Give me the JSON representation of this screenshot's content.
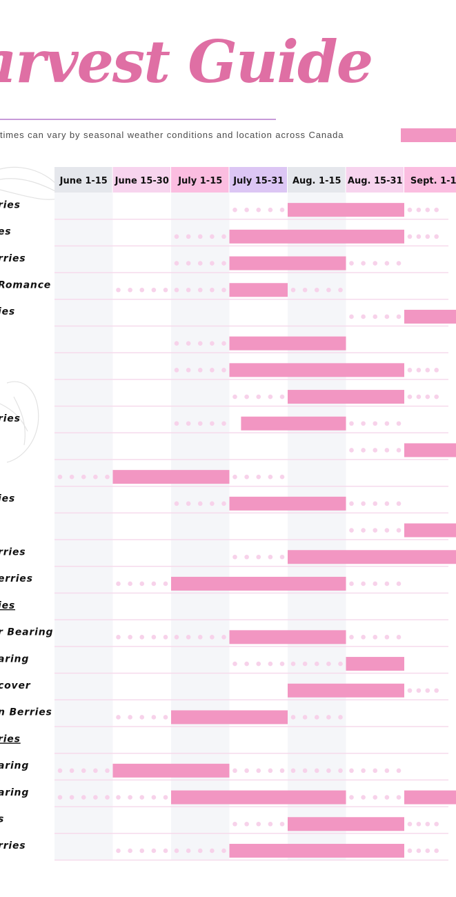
{
  "header": {
    "title": "arvest Guide",
    "subtitle": "times can vary by seasonal weather conditions and location across Canada"
  },
  "legend": {
    "color": "#f296c2"
  },
  "colors": {
    "bar": "#f296c2",
    "dots": "#f7d2ea",
    "row_line": "#f6daec",
    "column_shade": "#f5f6f9",
    "header_colors": [
      "#e5e7ec",
      "#f7d4ee",
      "#fbbde0",
      "#dcc6f4",
      "#e5e7ec",
      "#f7d4ee",
      "#fbbde0"
    ]
  },
  "chart_data": {
    "type": "gantt",
    "periods": [
      "June 1-15",
      "June 15-30",
      "July 1-15",
      "July 15-31",
      "Aug. 1-15",
      "Aug. 15-31",
      "Sept. 1-1"
    ],
    "rows": [
      {
        "label": "ries",
        "underline": false,
        "harvest": [
          4.0,
          6.0
        ],
        "dots_before": [
          3.0,
          4.0
        ],
        "dots_after": [
          6.0,
          6.8
        ]
      },
      {
        "label": "es",
        "underline": false,
        "harvest": [
          3.0,
          6.0
        ],
        "dots_before": [
          2.0,
          3.0
        ],
        "dots_after": [
          6.0,
          6.8
        ]
      },
      {
        "label": "rries",
        "underline": false,
        "harvest": [
          3.0,
          5.0
        ],
        "dots_before": [
          2.0,
          3.0
        ],
        "dots_after": [
          5.0,
          6.0
        ]
      },
      {
        "label": "Romance",
        "underline": false,
        "harvest": [
          3.0,
          4.0
        ],
        "dots_before": [
          1.0,
          3.0
        ],
        "dots_after": [
          4.0,
          5.0
        ]
      },
      {
        "label": "ies",
        "underline": false,
        "harvest": [
          6.0,
          7.0
        ],
        "dots_before": [
          5.0,
          6.0
        ],
        "dots_after": null
      },
      {
        "label": "",
        "underline": false,
        "harvest": [
          3.0,
          5.0
        ],
        "dots_before": [
          2.0,
          3.0
        ],
        "dots_after": null
      },
      {
        "label": "",
        "underline": false,
        "harvest": [
          3.0,
          6.0
        ],
        "dots_before": [
          2.0,
          3.0
        ],
        "dots_after": [
          6.0,
          6.8
        ]
      },
      {
        "label": "",
        "underline": false,
        "harvest": [
          4.0,
          6.0
        ],
        "dots_before": [
          3.0,
          4.0
        ],
        "dots_after": [
          6.0,
          6.8
        ]
      },
      {
        "label": "ries",
        "underline": false,
        "harvest": [
          3.2,
          5.0
        ],
        "dots_before": [
          2.0,
          3.0
        ],
        "dots_after": [
          5.0,
          6.0
        ]
      },
      {
        "label": "",
        "underline": false,
        "harvest": [
          6.0,
          7.0
        ],
        "dots_before": [
          5.0,
          6.0
        ],
        "dots_after": null
      },
      {
        "label": "",
        "underline": false,
        "harvest": [
          1.0,
          3.0
        ],
        "dots_before": [
          0.0,
          1.0
        ],
        "dots_after": [
          3.0,
          4.0
        ]
      },
      {
        "label": "ies",
        "underline": false,
        "harvest": [
          3.0,
          5.0
        ],
        "dots_before": [
          2.0,
          3.0
        ],
        "dots_after": [
          5.0,
          6.0
        ]
      },
      {
        "label": "",
        "underline": false,
        "harvest": [
          6.0,
          7.0
        ],
        "dots_before": [
          5.0,
          6.0
        ],
        "dots_after": null
      },
      {
        "label": "rries",
        "underline": false,
        "harvest": [
          4.0,
          7.0
        ],
        "dots_before": [
          3.0,
          4.0
        ],
        "dots_after": null
      },
      {
        "label": "erries",
        "underline": false,
        "harvest": [
          2.0,
          5.0
        ],
        "dots_before": [
          1.0,
          2.0
        ],
        "dots_after": [
          5.0,
          6.0
        ]
      },
      {
        "label": "ies",
        "underline": true,
        "harvest": null,
        "dots_before": null,
        "dots_after": null
      },
      {
        "label": "r Bearing",
        "underline": false,
        "harvest": [
          3.0,
          5.0
        ],
        "dots_before": [
          1.0,
          3.0
        ],
        "dots_after": [
          5.0,
          6.0
        ]
      },
      {
        "label": "aring",
        "underline": false,
        "harvest": [
          5.0,
          6.0
        ],
        "dots_before": [
          3.0,
          5.0
        ],
        "dots_after": null
      },
      {
        "label": "cover",
        "underline": false,
        "harvest": [
          4.0,
          6.0
        ],
        "dots_before": null,
        "dots_after": [
          6.0,
          6.8
        ]
      },
      {
        "label": "n Berries",
        "underline": false,
        "harvest": [
          2.0,
          4.0
        ],
        "dots_before": [
          1.0,
          2.0
        ],
        "dots_after": [
          4.0,
          5.0
        ]
      },
      {
        "label": "ries",
        "underline": true,
        "harvest": null,
        "dots_before": null,
        "dots_after": null
      },
      {
        "label": "aring",
        "underline": false,
        "harvest": [
          1.0,
          3.0
        ],
        "dots_before": [
          0.0,
          1.0
        ],
        "dots_after": [
          3.0,
          6.0
        ]
      },
      {
        "label": "aring",
        "underline": false,
        "harvest": [
          2.0,
          5.0
        ],
        "dots_before": [
          0.0,
          2.0
        ],
        "dots_after": [
          5.0,
          6.0
        ],
        "harvest2": [
          6.0,
          7.0
        ]
      },
      {
        "label": "s",
        "underline": false,
        "harvest": [
          4.0,
          6.0
        ],
        "dots_before": [
          3.0,
          4.0
        ],
        "dots_after": [
          6.0,
          6.8
        ]
      },
      {
        "label": "rries",
        "underline": false,
        "harvest": [
          3.0,
          6.0
        ],
        "dots_before": [
          1.0,
          3.0
        ],
        "dots_after": [
          6.0,
          6.8
        ]
      }
    ]
  }
}
